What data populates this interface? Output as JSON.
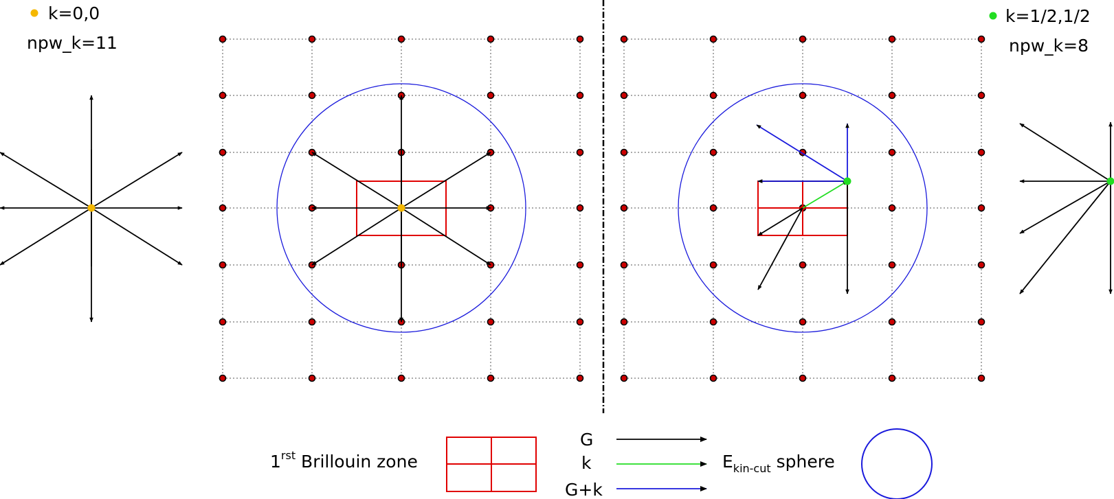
{
  "left_panel": {
    "k_label": "k=0,0",
    "npw_label": "npw_k=11",
    "k_dot_color": "#f5b800"
  },
  "right_panel": {
    "k_label": "k=1/2,1/2",
    "npw_label": "npw_k=8",
    "k_dot_color": "#22dd22"
  },
  "legend": {
    "bz_prefix": "1",
    "bz_superscript": "rst",
    "bz_suffix": " Brillouin zone",
    "g_label": "G",
    "k_label": "k",
    "gk_label": "G+k",
    "e_prefix": "E",
    "e_subscript": "kin-cut",
    "e_suffix": " sphere"
  },
  "colors": {
    "grid_dot": "#cc0000",
    "brillouin_zone": "#e00000",
    "sphere": "#1a1adc",
    "g_vector": "#000000",
    "k_vector": "#22dd22",
    "gk_vector": "#1a1adc"
  }
}
